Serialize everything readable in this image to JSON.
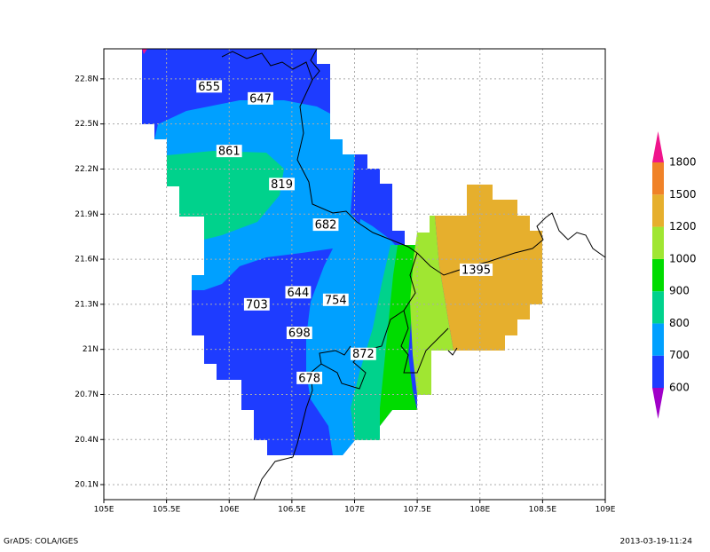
{
  "map": {
    "xlim": [
      105,
      109
    ],
    "ylim": [
      20,
      23
    ],
    "xticks": [
      {
        "value": 105,
        "label": "105E"
      },
      {
        "value": 105.5,
        "label": "105.5E"
      },
      {
        "value": 106,
        "label": "106E"
      },
      {
        "value": 106.5,
        "label": "106.5E"
      },
      {
        "value": 107,
        "label": "107E"
      },
      {
        "value": 107.5,
        "label": "107.5E"
      },
      {
        "value": 108,
        "label": "108E"
      },
      {
        "value": 108.5,
        "label": "108.5E"
      },
      {
        "value": 109,
        "label": "109E"
      }
    ],
    "yticks": [
      {
        "value": 20.1,
        "label": "20.1N"
      },
      {
        "value": 20.4,
        "label": "20.4N"
      },
      {
        "value": 20.7,
        "label": "20.7N"
      },
      {
        "value": 21,
        "label": "21N"
      },
      {
        "value": 21.3,
        "label": "21.3N"
      },
      {
        "value": 21.6,
        "label": "21.6N"
      },
      {
        "value": 21.9,
        "label": "21.9N"
      },
      {
        "value": 22.2,
        "label": "22.2N"
      },
      {
        "value": 22.5,
        "label": "22.5N"
      },
      {
        "value": 22.8,
        "label": "22.8N"
      }
    ],
    "grid": true,
    "contour_labels": [
      {
        "value": 655,
        "lon": 105.84,
        "lat": 22.75
      },
      {
        "value": 647,
        "lon": 106.25,
        "lat": 22.67
      },
      {
        "value": 861,
        "lon": 106.0,
        "lat": 22.32
      },
      {
        "value": 819,
        "lon": 106.42,
        "lat": 22.1
      },
      {
        "value": 682,
        "lon": 106.77,
        "lat": 21.83
      },
      {
        "value": 1395,
        "lon": 107.97,
        "lat": 21.53
      },
      {
        "value": 644,
        "lon": 106.55,
        "lat": 21.38
      },
      {
        "value": 754,
        "lon": 106.85,
        "lat": 21.33
      },
      {
        "value": 703,
        "lon": 106.22,
        "lat": 21.3
      },
      {
        "value": 698,
        "lon": 106.56,
        "lat": 21.11
      },
      {
        "value": 872,
        "lon": 107.07,
        "lat": 20.97
      },
      {
        "value": 678,
        "lon": 106.64,
        "lat": 20.81
      }
    ]
  },
  "colorbar": {
    "levels": [
      600,
      700,
      800,
      900,
      1000,
      1200,
      1500,
      1800
    ],
    "colors": [
      "#a000c8",
      "#1e3cff",
      "#00a0ff",
      "#00d28c",
      "#00dc00",
      "#a0e632",
      "#e6af2d",
      "#f08228",
      "#f0148c"
    ]
  },
  "footer": {
    "left": "GrADS: COLA/IGES",
    "right": "2013-03-19-11:24"
  }
}
